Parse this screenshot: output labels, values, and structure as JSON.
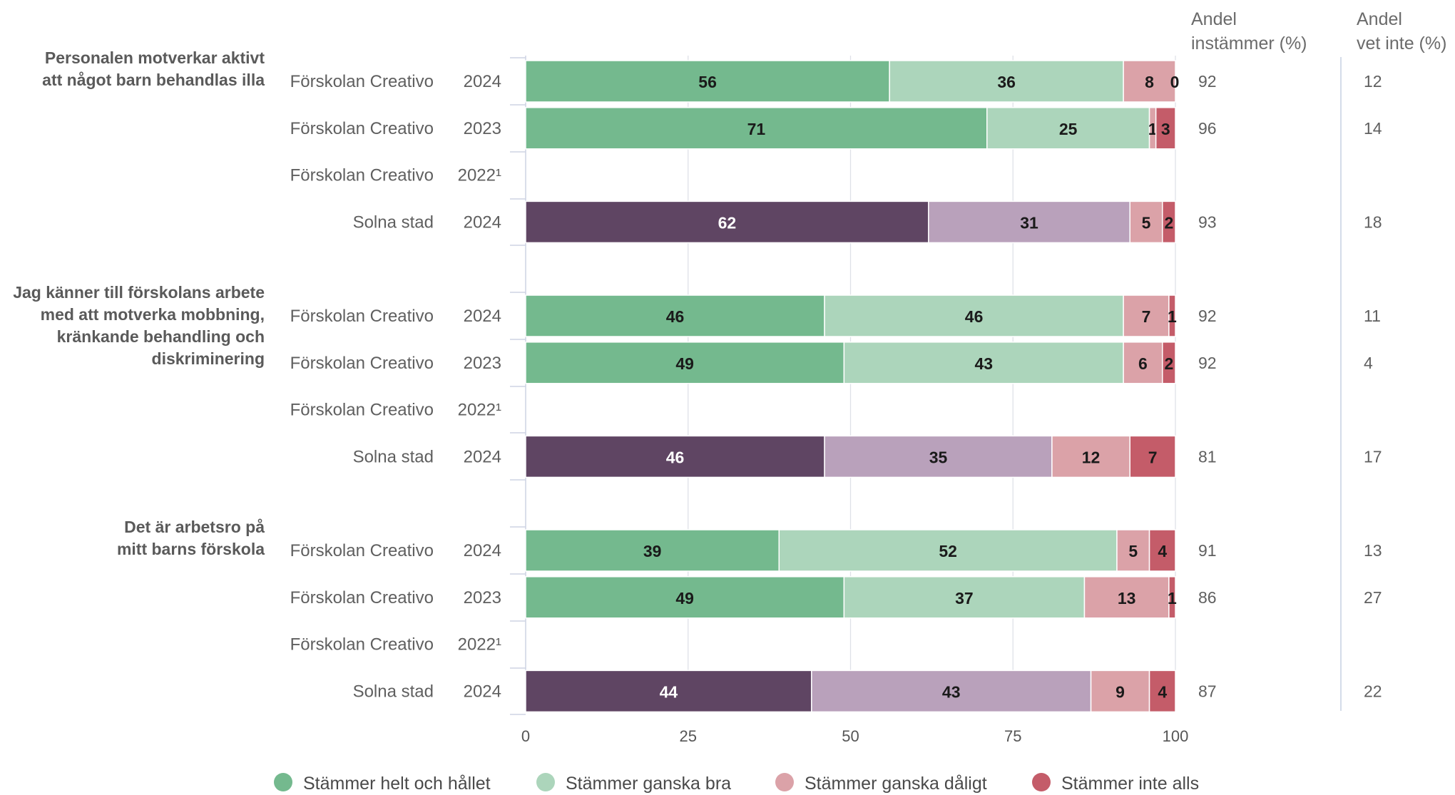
{
  "chart_data": {
    "type": "bar",
    "orientation": "horizontal",
    "stacked": true,
    "xlim": [
      0,
      100
    ],
    "xticks": [
      "0",
      "25",
      "50",
      "75",
      "100"
    ],
    "grid": true,
    "legend_position": "bottom",
    "column_headers": {
      "agree_share": [
        "Andel",
        "instämmer (%)"
      ],
      "dont_know_share": [
        "Andel",
        "vet inte (%)"
      ]
    },
    "series": [
      {
        "name": "Stämmer helt och hållet",
        "color": "#74b98e"
      },
      {
        "name": "Stämmer ganska bra",
        "color": "#acd5bb"
      },
      {
        "name": "Stämmer ganska dåligt",
        "color": "#dba2a8"
      },
      {
        "name": "Stämmer inte alls",
        "color": "#c45c69"
      }
    ],
    "solna_colors": [
      "#5f4563",
      "#b9a1bb",
      "#dba2a8",
      "#c45c69"
    ],
    "groups": [
      {
        "question": [
          "Personalen motverkar aktivt",
          "att något barn behandlas illa"
        ],
        "rows": [
          {
            "unit": "Förskolan Creativo",
            "year": "2024",
            "values": [
              56,
              36,
              8,
              0
            ],
            "agree": "92",
            "dont_know": "12",
            "kind": "school"
          },
          {
            "unit": "Förskolan Creativo",
            "year": "2023",
            "values": [
              71,
              25,
              1,
              3
            ],
            "agree": "96",
            "dont_know": "14",
            "kind": "school"
          },
          {
            "unit": "Förskolan Creativo",
            "year": "2022¹",
            "values": null,
            "agree": "",
            "dont_know": "",
            "kind": "school"
          },
          {
            "unit": "Solna stad",
            "year": "2024",
            "values": [
              62,
              31,
              5,
              2
            ],
            "agree": "93",
            "dont_know": "18",
            "kind": "city"
          }
        ]
      },
      {
        "question": [
          "Jag känner till förskolans arbete",
          "med att motverka mobbning,",
          "kränkande behandling och",
          "diskriminering"
        ],
        "rows": [
          {
            "unit": "Förskolan Creativo",
            "year": "2024",
            "values": [
              46,
              46,
              7,
              1
            ],
            "agree": "92",
            "dont_know": "11",
            "kind": "school"
          },
          {
            "unit": "Förskolan Creativo",
            "year": "2023",
            "values": [
              49,
              43,
              6,
              2
            ],
            "agree": "92",
            "dont_know": "4",
            "kind": "school"
          },
          {
            "unit": "Förskolan Creativo",
            "year": "2022¹",
            "values": null,
            "agree": "",
            "dont_know": "",
            "kind": "school"
          },
          {
            "unit": "Solna stad",
            "year": "2024",
            "values": [
              46,
              35,
              12,
              7
            ],
            "agree": "81",
            "dont_know": "17",
            "kind": "city"
          }
        ]
      },
      {
        "question": [
          "Det är arbetsro på",
          "mitt barns förskola"
        ],
        "rows": [
          {
            "unit": "Förskolan Creativo",
            "year": "2024",
            "values": [
              39,
              52,
              5,
              4
            ],
            "agree": "91",
            "dont_know": "13",
            "kind": "school"
          },
          {
            "unit": "Förskolan Creativo",
            "year": "2023",
            "values": [
              49,
              37,
              13,
              1
            ],
            "agree": "86",
            "dont_know": "27",
            "kind": "school"
          },
          {
            "unit": "Förskolan Creativo",
            "year": "2022¹",
            "values": null,
            "agree": "",
            "dont_know": "",
            "kind": "school"
          },
          {
            "unit": "Solna stad",
            "year": "2024",
            "values": [
              44,
              43,
              9,
              4
            ],
            "agree": "87",
            "dont_know": "22",
            "kind": "city"
          }
        ]
      }
    ]
  }
}
